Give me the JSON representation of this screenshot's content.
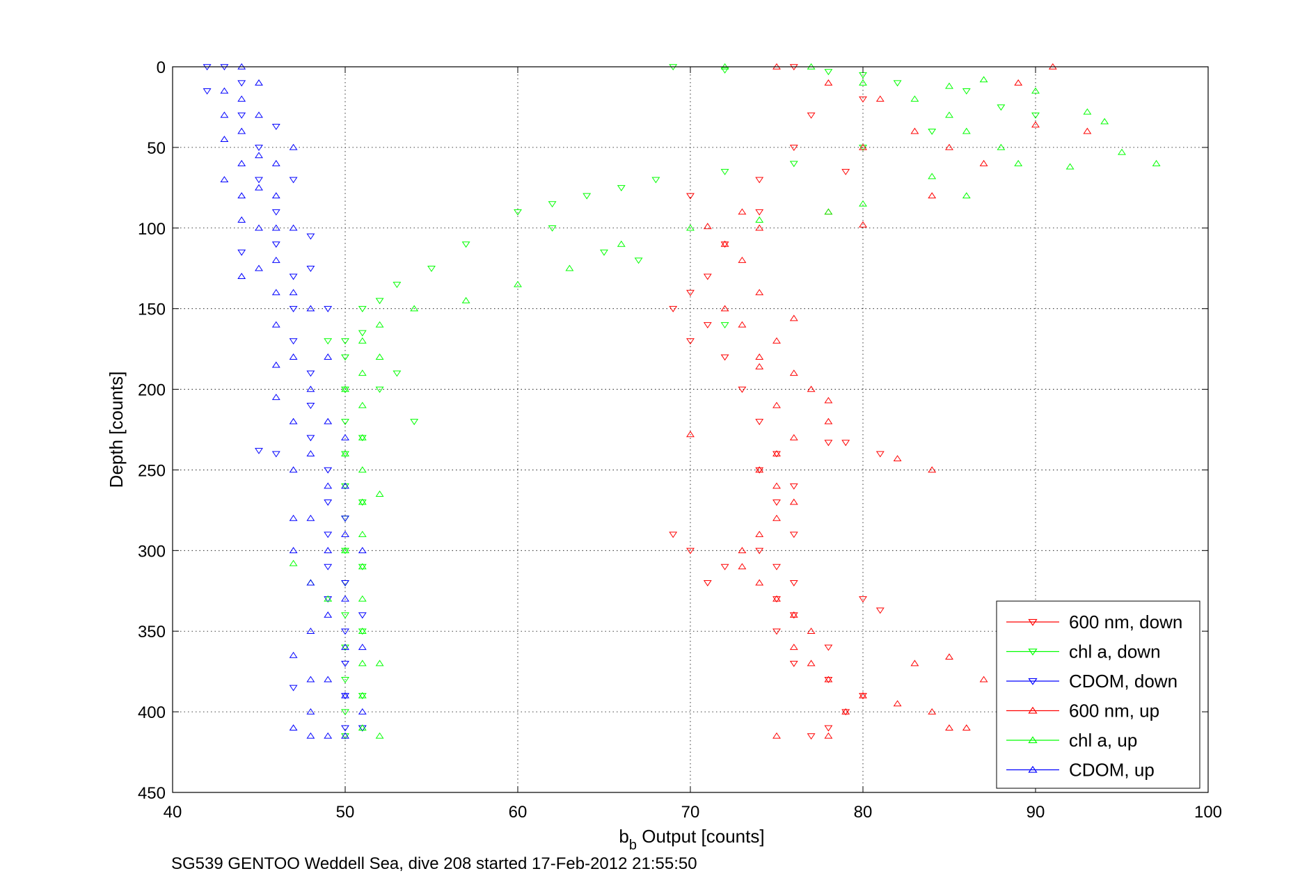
{
  "chart_data": {
    "type": "scatter",
    "title": "",
    "xlabel_main": "b",
    "xlabel_sub": "b",
    "xlabel_rest": " Output [counts]",
    "ylabel": "Depth [counts]",
    "xlim": [
      40,
      100
    ],
    "ylim": [
      0,
      450
    ],
    "y_reversed": true,
    "xticks": [
      40,
      50,
      60,
      70,
      80,
      90,
      100
    ],
    "yticks": [
      0,
      50,
      100,
      150,
      200,
      250,
      300,
      350,
      400,
      450
    ],
    "grid": true,
    "legend_position": "bottom-right",
    "caption": "SG539 GENTOO Weddell Sea, dive 208 started 17-Feb-2012 21:55:50",
    "series": [
      {
        "name": "600 nm, down",
        "color": "#ff0000",
        "marker": "triangle-down",
        "points": [
          [
            76,
            0
          ],
          [
            80,
            20
          ],
          [
            77,
            30
          ],
          [
            76,
            50
          ],
          [
            79,
            65
          ],
          [
            74,
            70
          ],
          [
            70,
            80
          ],
          [
            74,
            90
          ],
          [
            72,
            110
          ],
          [
            71,
            130
          ],
          [
            70,
            140
          ],
          [
            69,
            150
          ],
          [
            71,
            160
          ],
          [
            70,
            170
          ],
          [
            72,
            180
          ],
          [
            73,
            200
          ],
          [
            74,
            220
          ],
          [
            75,
            240
          ],
          [
            74,
            250
          ],
          [
            76,
            260
          ],
          [
            75,
            270
          ],
          [
            76,
            290
          ],
          [
            74,
            300
          ],
          [
            75,
            310
          ],
          [
            76,
            320
          ],
          [
            75,
            330
          ],
          [
            76,
            340
          ],
          [
            75,
            350
          ],
          [
            78,
            360
          ],
          [
            76,
            370
          ],
          [
            78,
            380
          ],
          [
            80,
            390
          ],
          [
            79,
            400
          ],
          [
            78,
            410
          ],
          [
            77,
            415
          ],
          [
            69,
            290
          ],
          [
            70,
            300
          ],
          [
            72,
            310
          ],
          [
            71,
            320
          ],
          [
            81,
            240
          ],
          [
            81,
            337
          ],
          [
            80,
            330
          ],
          [
            78,
            233
          ],
          [
            79,
            233
          ]
        ]
      },
      {
        "name": "chl a, down",
        "color": "#00ff00",
        "marker": "triangle-down",
        "points": [
          [
            69,
            0
          ],
          [
            72,
            2
          ],
          [
            78,
            3
          ],
          [
            80,
            5
          ],
          [
            82,
            10
          ],
          [
            86,
            15
          ],
          [
            88,
            25
          ],
          [
            90,
            30
          ],
          [
            84,
            40
          ],
          [
            80,
            50
          ],
          [
            76,
            60
          ],
          [
            72,
            65
          ],
          [
            68,
            70
          ],
          [
            66,
            75
          ],
          [
            64,
            80
          ],
          [
            62,
            85
          ],
          [
            60,
            90
          ],
          [
            57,
            110
          ],
          [
            55,
            125
          ],
          [
            53,
            135
          ],
          [
            52,
            145
          ],
          [
            51,
            150
          ],
          [
            50,
            170
          ],
          [
            50,
            180
          ],
          [
            50,
            200
          ],
          [
            50,
            220
          ],
          [
            50,
            240
          ],
          [
            50,
            260
          ],
          [
            50,
            280
          ],
          [
            50,
            300
          ],
          [
            50,
            320
          ],
          [
            50,
            340
          ],
          [
            50,
            360
          ],
          [
            50,
            380
          ],
          [
            50,
            400
          ],
          [
            50,
            415
          ],
          [
            51,
            410
          ],
          [
            51,
            390
          ],
          [
            51,
            350
          ],
          [
            51,
            310
          ],
          [
            51,
            270
          ],
          [
            51,
            230
          ],
          [
            52,
            200
          ],
          [
            53,
            190
          ],
          [
            54,
            220
          ],
          [
            51,
            165
          ],
          [
            49,
            170
          ],
          [
            62,
            100
          ],
          [
            65,
            115
          ],
          [
            67,
            120
          ],
          [
            72,
            160
          ]
        ]
      },
      {
        "name": "CDOM, down",
        "color": "#0000ff",
        "marker": "triangle-down",
        "points": [
          [
            42,
            0
          ],
          [
            42,
            15
          ],
          [
            43,
            0
          ],
          [
            44,
            10
          ],
          [
            44,
            30
          ],
          [
            45,
            50
          ],
          [
            45,
            70
          ],
          [
            46,
            90
          ],
          [
            46,
            110
          ],
          [
            47,
            130
          ],
          [
            47,
            150
          ],
          [
            47,
            170
          ],
          [
            48,
            190
          ],
          [
            48,
            210
          ],
          [
            48,
            230
          ],
          [
            49,
            250
          ],
          [
            49,
            270
          ],
          [
            49,
            290
          ],
          [
            49,
            310
          ],
          [
            49,
            330
          ],
          [
            50,
            350
          ],
          [
            50,
            370
          ],
          [
            50,
            390
          ],
          [
            50,
            410
          ],
          [
            48,
            105
          ],
          [
            47,
            385
          ],
          [
            46,
            240
          ],
          [
            45,
            238
          ],
          [
            44,
            115
          ],
          [
            46,
            37
          ],
          [
            47,
            70
          ],
          [
            48,
            125
          ],
          [
            49,
            150
          ],
          [
            50,
            280
          ],
          [
            50,
            320
          ],
          [
            51,
            340
          ],
          [
            51,
            410
          ]
        ]
      },
      {
        "name": "600 nm, up",
        "color": "#ff0000",
        "marker": "triangle-up",
        "points": [
          [
            75,
            0
          ],
          [
            78,
            10
          ],
          [
            81,
            20
          ],
          [
            83,
            40
          ],
          [
            85,
            50
          ],
          [
            87,
            60
          ],
          [
            84,
            80
          ],
          [
            78,
            90
          ],
          [
            74,
            100
          ],
          [
            72,
            110
          ],
          [
            73,
            120
          ],
          [
            74,
            140
          ],
          [
            72,
            150
          ],
          [
            73,
            160
          ],
          [
            75,
            170
          ],
          [
            74,
            180
          ],
          [
            76,
            190
          ],
          [
            77,
            200
          ],
          [
            75,
            210
          ],
          [
            78,
            220
          ],
          [
            76,
            230
          ],
          [
            75,
            240
          ],
          [
            74,
            250
          ],
          [
            75,
            260
          ],
          [
            76,
            270
          ],
          [
            75,
            280
          ],
          [
            74,
            290
          ],
          [
            73,
            300
          ],
          [
            73,
            310
          ],
          [
            74,
            320
          ],
          [
            75,
            330
          ],
          [
            76,
            340
          ],
          [
            77,
            350
          ],
          [
            76,
            360
          ],
          [
            77,
            370
          ],
          [
            78,
            380
          ],
          [
            80,
            390
          ],
          [
            82,
            395
          ],
          [
            84,
            400
          ],
          [
            85,
            410
          ],
          [
            86,
            410
          ],
          [
            87,
            380
          ],
          [
            85,
            366
          ],
          [
            83,
            370
          ],
          [
            78,
            415
          ],
          [
            79,
            400
          ],
          [
            75,
            415
          ],
          [
            84,
            250
          ],
          [
            82,
            243
          ],
          [
            78,
            207
          ],
          [
            80,
            98
          ],
          [
            80,
            50
          ],
          [
            90,
            36
          ],
          [
            93,
            40
          ],
          [
            91,
            0
          ],
          [
            89,
            10
          ],
          [
            70,
            228
          ],
          [
            74,
            186
          ],
          [
            76,
            156
          ],
          [
            73,
            90
          ],
          [
            71,
            99
          ]
        ]
      },
      {
        "name": "chl a, up",
        "color": "#00ff00",
        "marker": "triangle-up",
        "points": [
          [
            72,
            0
          ],
          [
            77,
            0
          ],
          [
            80,
            10
          ],
          [
            83,
            20
          ],
          [
            85,
            30
          ],
          [
            86,
            40
          ],
          [
            88,
            50
          ],
          [
            89,
            60
          ],
          [
            92,
            62
          ],
          [
            95,
            53
          ],
          [
            97,
            60
          ],
          [
            94,
            34
          ],
          [
            93,
            28
          ],
          [
            90,
            15
          ],
          [
            87,
            8
          ],
          [
            85,
            12
          ],
          [
            84,
            68
          ],
          [
            86,
            80
          ],
          [
            80,
            85
          ],
          [
            78,
            90
          ],
          [
            74,
            95
          ],
          [
            70,
            100
          ],
          [
            66,
            110
          ],
          [
            63,
            125
          ],
          [
            60,
            135
          ],
          [
            57,
            145
          ],
          [
            54,
            150
          ],
          [
            52,
            160
          ],
          [
            51,
            170
          ],
          [
            51,
            190
          ],
          [
            51,
            210
          ],
          [
            51,
            230
          ],
          [
            51,
            250
          ],
          [
            51,
            270
          ],
          [
            51,
            290
          ],
          [
            51,
            310
          ],
          [
            51,
            330
          ],
          [
            51,
            350
          ],
          [
            51,
            370
          ],
          [
            51,
            390
          ],
          [
            51,
            410
          ],
          [
            52,
            415
          ],
          [
            52,
            370
          ],
          [
            52,
            265
          ],
          [
            50,
            200
          ],
          [
            50,
            240
          ],
          [
            50,
            300
          ],
          [
            49,
            330
          ],
          [
            48,
            320
          ],
          [
            47,
            308
          ],
          [
            52,
            180
          ]
        ]
      },
      {
        "name": "CDOM, up",
        "color": "#0000ff",
        "marker": "triangle-up",
        "points": [
          [
            43,
            15
          ],
          [
            43,
            30
          ],
          [
            43,
            45
          ],
          [
            43,
            70
          ],
          [
            44,
            0
          ],
          [
            44,
            20
          ],
          [
            44,
            40
          ],
          [
            44,
            60
          ],
          [
            44,
            80
          ],
          [
            44,
            95
          ],
          [
            44,
            130
          ],
          [
            45,
            10
          ],
          [
            45,
            30
          ],
          [
            45,
            55
          ],
          [
            45,
            75
          ],
          [
            45,
            100
          ],
          [
            45,
            125
          ],
          [
            46,
            60
          ],
          [
            46,
            80
          ],
          [
            46,
            100
          ],
          [
            46,
            120
          ],
          [
            46,
            140
          ],
          [
            46,
            160
          ],
          [
            46,
            185
          ],
          [
            46,
            205
          ],
          [
            47,
            50
          ],
          [
            47,
            100
          ],
          [
            47,
            140
          ],
          [
            47,
            180
          ],
          [
            47,
            220
          ],
          [
            47,
            250
          ],
          [
            47,
            280
          ],
          [
            47,
            300
          ],
          [
            47,
            365
          ],
          [
            47,
            410
          ],
          [
            48,
            150
          ],
          [
            48,
            200
          ],
          [
            48,
            240
          ],
          [
            48,
            280
          ],
          [
            48,
            320
          ],
          [
            48,
            350
          ],
          [
            48,
            380
          ],
          [
            48,
            400
          ],
          [
            48,
            415
          ],
          [
            49,
            180
          ],
          [
            49,
            220
          ],
          [
            49,
            260
          ],
          [
            49,
            300
          ],
          [
            49,
            340
          ],
          [
            49,
            380
          ],
          [
            49,
            415
          ],
          [
            50,
            230
          ],
          [
            50,
            260
          ],
          [
            50,
            290
          ],
          [
            50,
            330
          ],
          [
            50,
            360
          ],
          [
            50,
            390
          ],
          [
            50,
            415
          ],
          [
            51,
            300
          ],
          [
            51,
            360
          ],
          [
            51,
            400
          ]
        ]
      }
    ]
  }
}
